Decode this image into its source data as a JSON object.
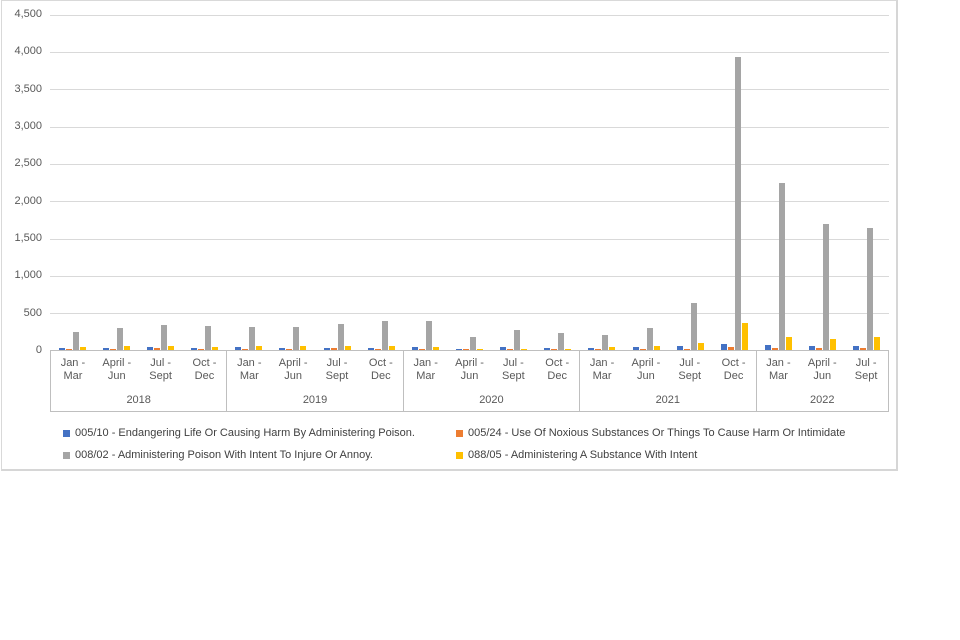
{
  "page": {
    "background": "#ffffff"
  },
  "chart_data": {
    "type": "bar",
    "title": "",
    "xlabel": "",
    "ylabel": "",
    "ylim": [
      0,
      4500
    ],
    "ytick_interval": 500,
    "ytick_labels": [
      "0",
      "500",
      "1,000",
      "1,500",
      "2,000",
      "2,500",
      "3,000",
      "3,500",
      "4,000",
      "4,500"
    ],
    "grid": true,
    "legend_position": "bottom",
    "gridline_color": "#d9d9d9",
    "axis_line_color": "#bfbfbf",
    "axis_text_color": "#595959",
    "years": [
      {
        "label": "2018",
        "quarters": [
          "Jan -\nMar",
          "April -\nJun",
          "Jul -\nSept",
          "Oct -\nDec"
        ]
      },
      {
        "label": "2019",
        "quarters": [
          "Jan -\nMar",
          "April -\nJun",
          "Jul -\nSept",
          "Oct -\nDec"
        ]
      },
      {
        "label": "2020",
        "quarters": [
          "Jan -\nMar",
          "April -\nJun",
          "Jul -\nSept",
          "Oct -\nDec"
        ]
      },
      {
        "label": "2021",
        "quarters": [
          "Jan -\nMar",
          "April -\nJun",
          "Jul -\nSept",
          "Oct -\nDec"
        ]
      },
      {
        "label": "2022",
        "quarters": [
          "Jan -\nMar",
          "April -\nJun",
          "Jul -\nSept"
        ]
      }
    ],
    "series": [
      {
        "name": "005/10 - Endangering Life Or Causing Harm By Administering Poison.",
        "color": "#4472C4",
        "values": [
          30,
          30,
          40,
          25,
          35,
          25,
          30,
          25,
          35,
          20,
          40,
          25,
          30,
          40,
          55,
          75,
          65,
          55,
          60
        ]
      },
      {
        "name": "005/24 - Use Of Noxious Substances Or Things To Cause Harm Or Intimidate",
        "color": "#ED7D31",
        "values": [
          20,
          20,
          30,
          20,
          10,
          15,
          30,
          20,
          15,
          10,
          20,
          20,
          15,
          20,
          20,
          45,
          30,
          25,
          30
        ]
      },
      {
        "name": "008/02 - Administering Poison With Intent To Injure Or Annoy.",
        "color": "#A5A5A5",
        "values": [
          245,
          295,
          340,
          325,
          305,
          310,
          350,
          385,
          395,
          175,
          270,
          230,
          200,
          300,
          630,
          3920,
          2240,
          1690,
          1640
        ]
      },
      {
        "name": "088/05 - Administering A Substance With Intent",
        "color": "#FFC000",
        "values": [
          45,
          50,
          55,
          45,
          50,
          50,
          55,
          50,
          35,
          20,
          20,
          10,
          40,
          50,
          90,
          365,
          180,
          150,
          175
        ]
      }
    ]
  }
}
